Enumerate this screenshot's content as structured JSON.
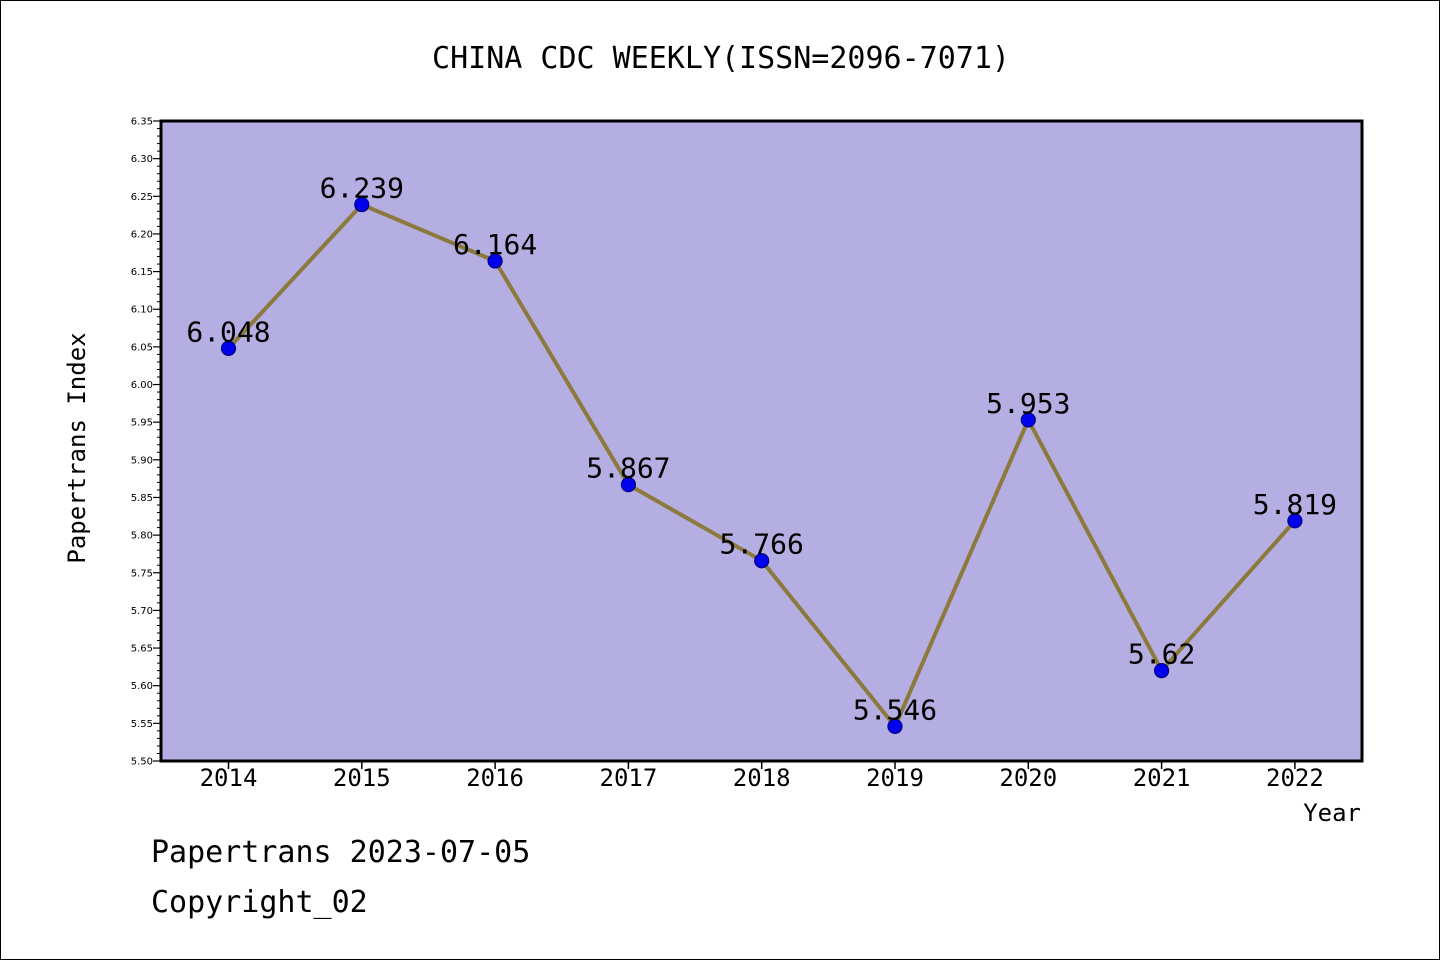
{
  "chart_data": {
    "type": "line",
    "title": "CHINA CDC WEEKLY(ISSN=2096-7071)",
    "xlabel": "Year",
    "ylabel": "Papertrans Index",
    "categories": [
      "2014",
      "2015",
      "2016",
      "2017",
      "2018",
      "2019",
      "2020",
      "2021",
      "2022"
    ],
    "values": [
      6.048,
      6.239,
      6.164,
      5.867,
      5.766,
      5.546,
      5.953,
      5.62,
      5.819
    ],
    "data_labels": [
      "6.048",
      "6.239",
      "6.164",
      "5.867",
      "5.766",
      "5.546",
      "5.953",
      "5.62",
      "5.819"
    ],
    "ylim": [
      5.5,
      6.35
    ],
    "yticks": [
      "5.50",
      "5.55",
      "5.60",
      "5.65",
      "5.70",
      "5.75",
      "5.80",
      "5.85",
      "5.90",
      "5.95",
      "6.00",
      "6.05",
      "6.10",
      "6.15",
      "6.20",
      "6.25",
      "6.30",
      "6.35"
    ],
    "grid": false,
    "legend": "none",
    "colors": {
      "plot_background": "#b4aee2",
      "line": "#8c7a3c",
      "marker": "#0000ee",
      "marker_edge": "#000080"
    }
  },
  "footer": {
    "line1": "Papertrans 2023-07-05",
    "line2": "Copyright_02"
  }
}
